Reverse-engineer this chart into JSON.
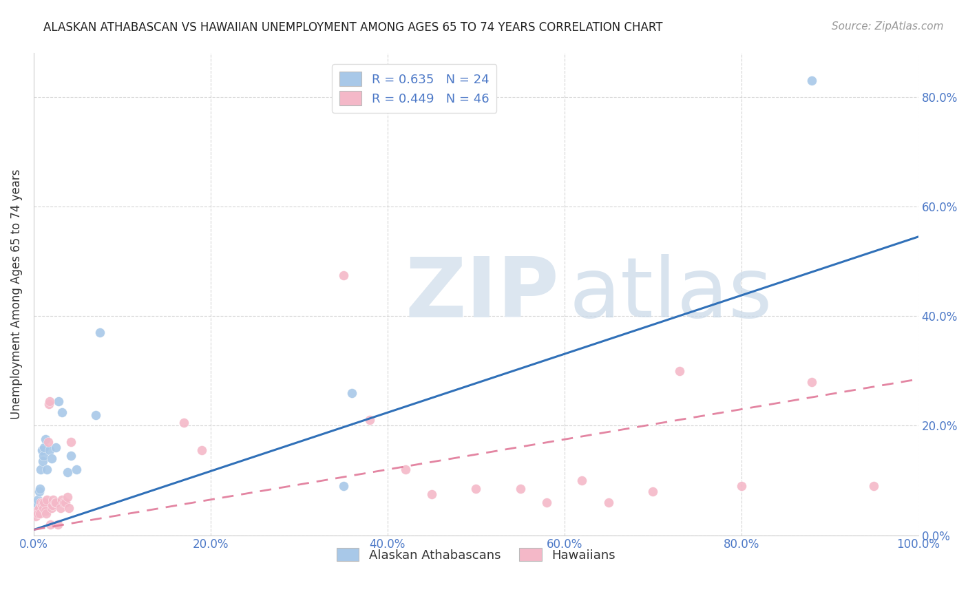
{
  "title": "ALASKAN ATHABASCAN VS HAWAIIAN UNEMPLOYMENT AMONG AGES 65 TO 74 YEARS CORRELATION CHART",
  "source": "Source: ZipAtlas.com",
  "ylabel": "Unemployment Among Ages 65 to 74 years",
  "xlim": [
    0.0,
    1.0
  ],
  "ylim": [
    0.0,
    0.88
  ],
  "blue_R": 0.635,
  "blue_N": 24,
  "pink_R": 0.449,
  "pink_N": 46,
  "blue_color": "#a8c8e8",
  "pink_color": "#f4b8c8",
  "blue_line_color": "#3070b8",
  "pink_line_color": "#e07898",
  "legend_label_blue": "Alaskan Athabascans",
  "legend_label_pink": "Hawaiians",
  "blue_line_x0": 0.0,
  "blue_line_y0": 0.01,
  "blue_line_x1": 1.0,
  "blue_line_y1": 0.545,
  "pink_line_x0": 0.0,
  "pink_line_y0": 0.01,
  "pink_line_x1": 1.0,
  "pink_line_y1": 0.285,
  "blue_points_x": [
    0.003,
    0.005,
    0.006,
    0.007,
    0.008,
    0.009,
    0.01,
    0.011,
    0.012,
    0.013,
    0.015,
    0.018,
    0.02,
    0.025,
    0.028,
    0.032,
    0.038,
    0.042,
    0.048,
    0.07,
    0.075,
    0.35,
    0.36,
    0.88
  ],
  "blue_points_y": [
    0.055,
    0.065,
    0.08,
    0.085,
    0.12,
    0.155,
    0.135,
    0.145,
    0.16,
    0.175,
    0.12,
    0.155,
    0.14,
    0.16,
    0.245,
    0.225,
    0.115,
    0.145,
    0.12,
    0.22,
    0.37,
    0.09,
    0.26,
    0.83
  ],
  "pink_points_x": [
    0.002,
    0.004,
    0.005,
    0.006,
    0.007,
    0.008,
    0.009,
    0.01,
    0.011,
    0.012,
    0.013,
    0.014,
    0.015,
    0.016,
    0.017,
    0.018,
    0.019,
    0.02,
    0.021,
    0.022,
    0.024,
    0.025,
    0.027,
    0.03,
    0.032,
    0.034,
    0.036,
    0.038,
    0.04,
    0.042,
    0.17,
    0.19,
    0.35,
    0.38,
    0.42,
    0.45,
    0.5,
    0.55,
    0.58,
    0.62,
    0.65,
    0.7,
    0.73,
    0.8,
    0.88,
    0.95
  ],
  "pink_points_y": [
    0.035,
    0.045,
    0.04,
    0.05,
    0.04,
    0.06,
    0.055,
    0.06,
    0.05,
    0.06,
    0.045,
    0.04,
    0.065,
    0.17,
    0.24,
    0.245,
    0.02,
    0.05,
    0.055,
    0.065,
    0.06,
    0.06,
    0.02,
    0.05,
    0.065,
    0.06,
    0.06,
    0.07,
    0.05,
    0.17,
    0.205,
    0.155,
    0.475,
    0.21,
    0.12,
    0.075,
    0.085,
    0.085,
    0.06,
    0.1,
    0.06,
    0.08,
    0.3,
    0.09,
    0.28,
    0.09
  ],
  "xtick_vals": [
    0.0,
    0.2,
    0.4,
    0.6,
    0.8,
    1.0
  ],
  "xtick_labels": [
    "0.0%",
    "20.0%",
    "40.0%",
    "60.0%",
    "80.0%",
    "100.0%"
  ],
  "ytick_vals": [
    0.0,
    0.2,
    0.4,
    0.6,
    0.8
  ],
  "ytick_labels": [
    "0.0%",
    "20.0%",
    "40.0%",
    "60.0%",
    "80.0%"
  ],
  "tick_color": "#4d79c7",
  "grid_color": "#cccccc",
  "title_fontsize": 12,
  "source_fontsize": 11,
  "tick_fontsize": 12,
  "ylabel_fontsize": 12
}
